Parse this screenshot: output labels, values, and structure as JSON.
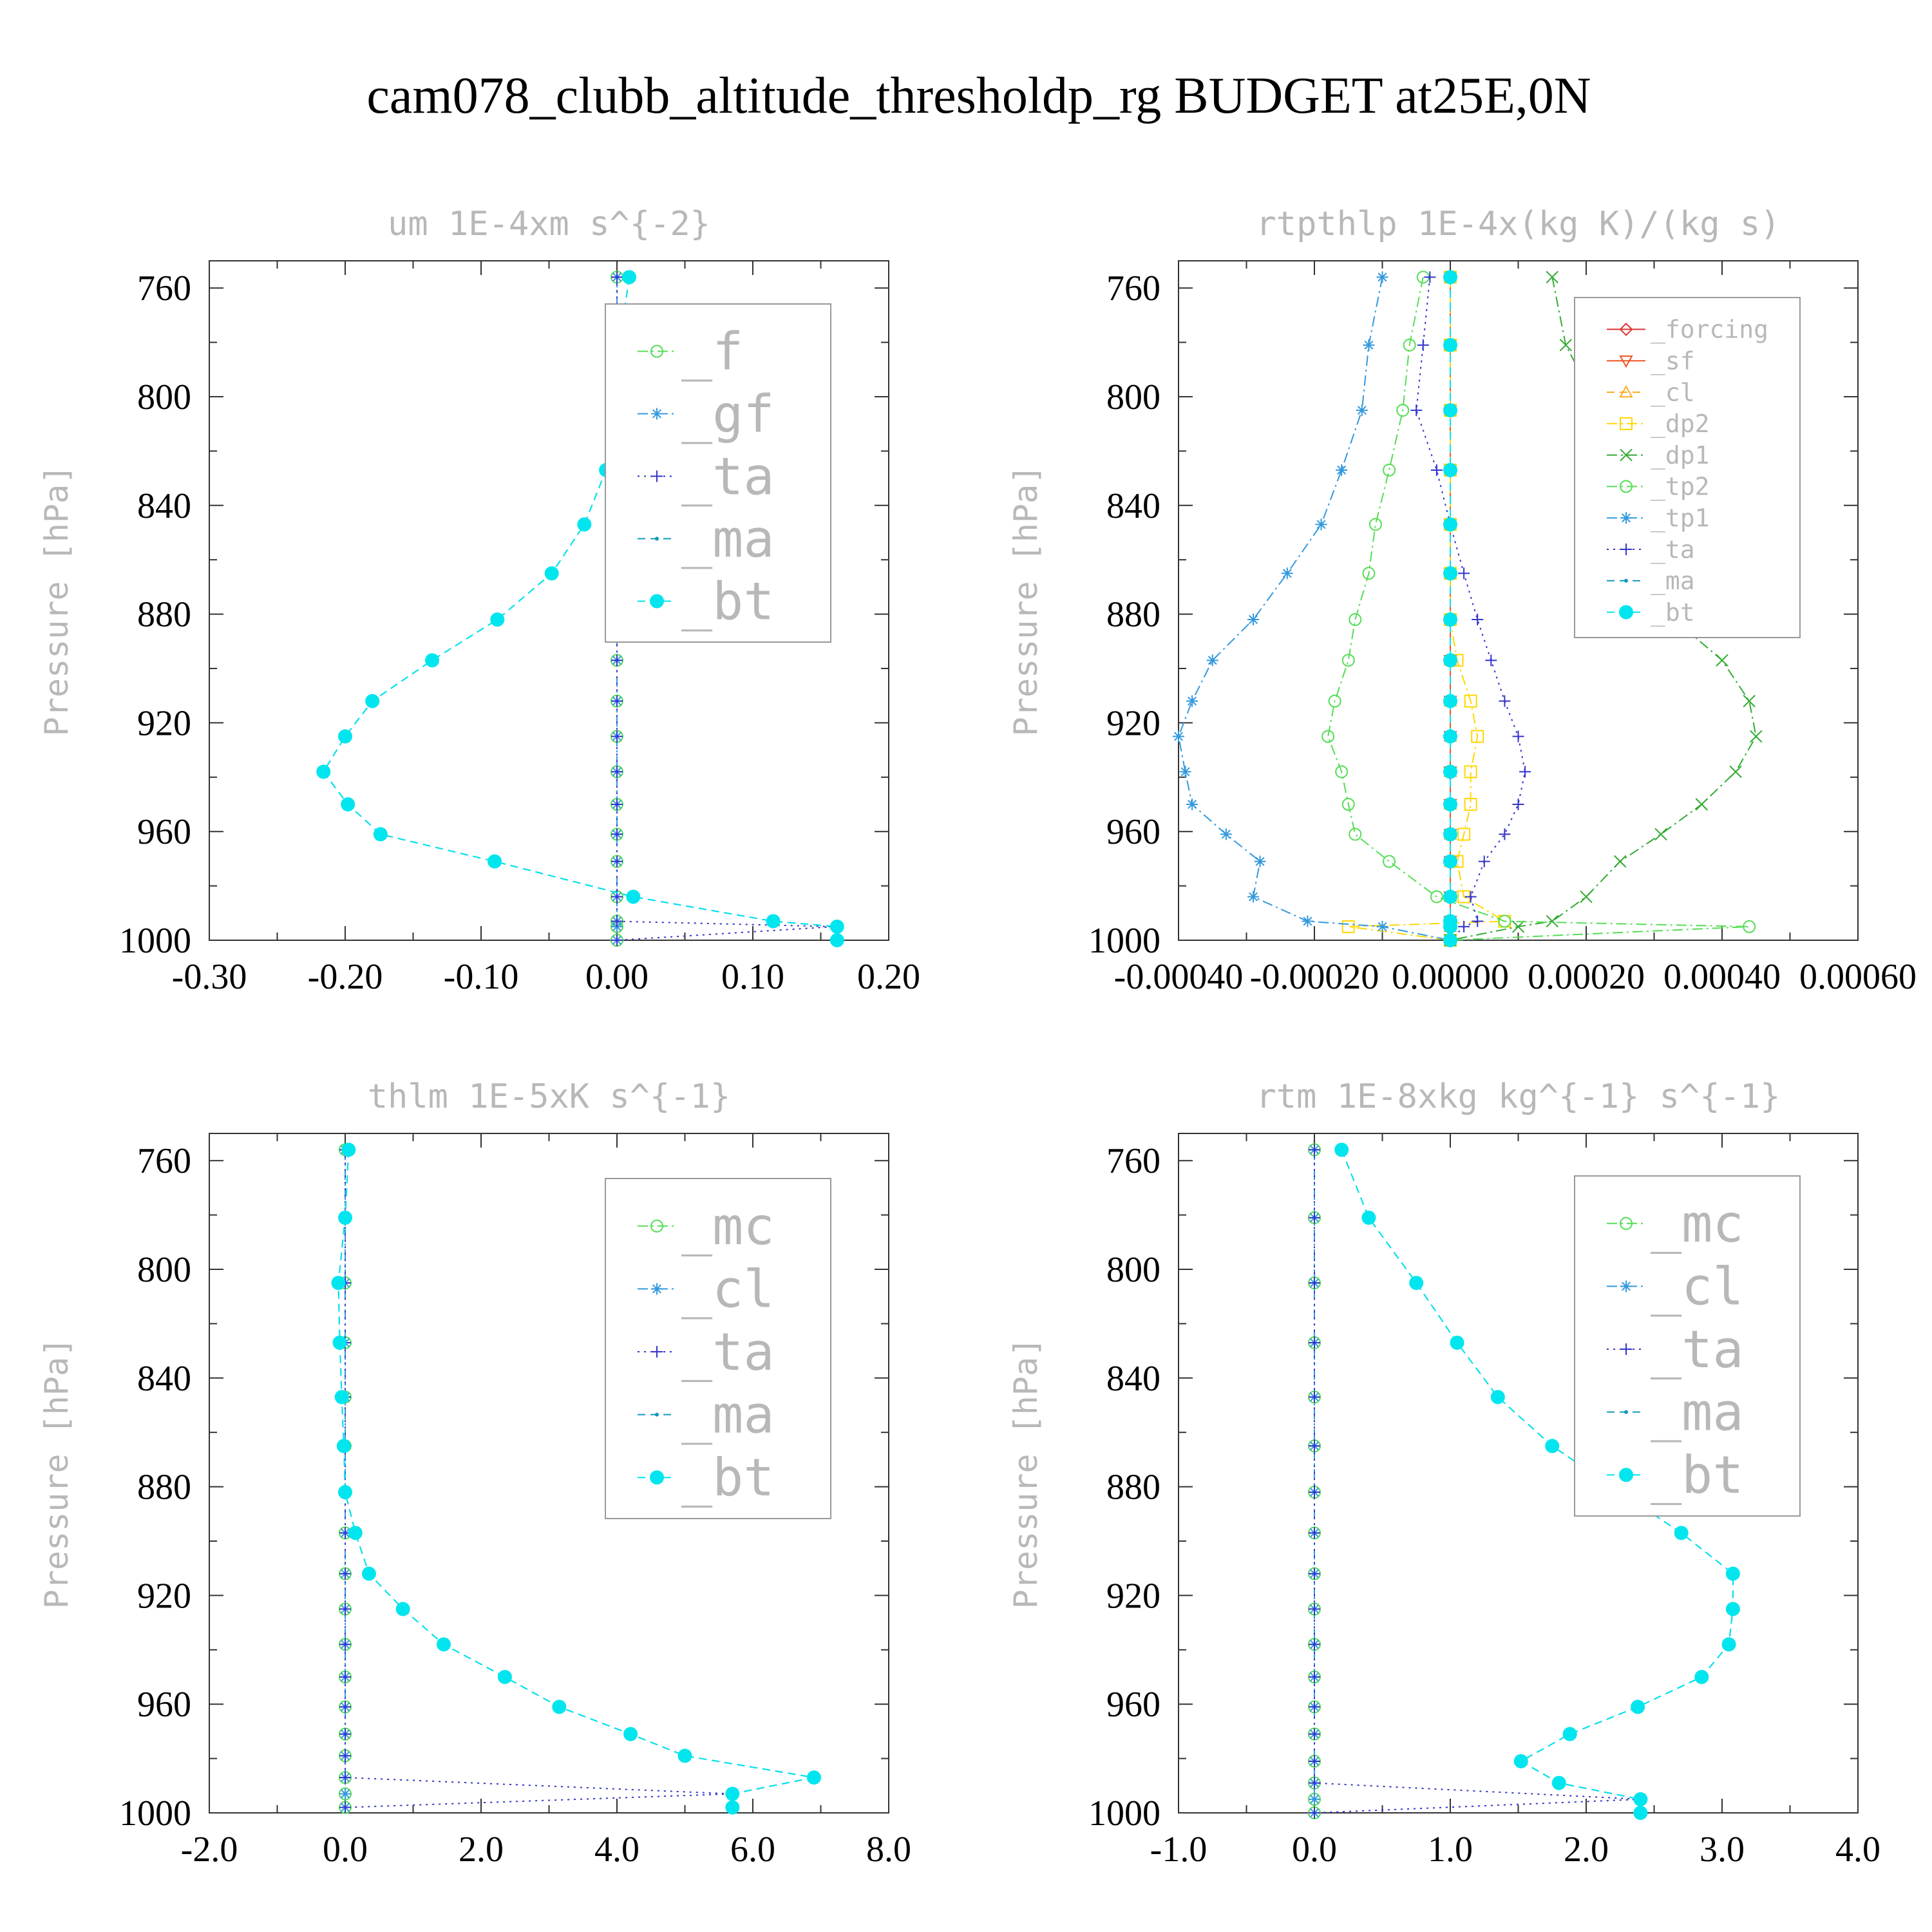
{
  "title": "cam078_clubb_altitude_thresholdp_rg  BUDGET at25E,0N",
  "colors": {
    "f": "#55dd55",
    "gf": "#3399dd",
    "ta": "#3333cc",
    "ma": "#1199bb",
    "bt": "#00e5ee",
    "forcing": "#dd3333",
    "sf": "#ee5522",
    "cl": "#ffaa22",
    "dp2": "#ffd700",
    "dp1": "#33aa33",
    "tp2": "#55dd55",
    "tp1": "#3399dd",
    "mc": "#55dd55",
    "cl2": "#3399dd"
  },
  "chart_data": [
    {
      "type": "line",
      "title": "um  1E-4xm s^{-2}",
      "ylabel": "Pressure [hPa]",
      "xlim": [
        -0.3,
        0.2
      ],
      "ylim": [
        1000,
        750
      ],
      "xticks": [
        "-0.30",
        "-0.20",
        "-0.10",
        "0.00",
        "0.10",
        "0.20"
      ],
      "yticks": [
        "760",
        "800",
        "840",
        "880",
        "920",
        "960",
        "1000"
      ],
      "legend_size": "large",
      "p": [
        756,
        781,
        805,
        827,
        847,
        865,
        882,
        897,
        912,
        925,
        938,
        950,
        961,
        971,
        984,
        993,
        995,
        1000
      ],
      "series": [
        {
          "name": "_f",
          "key": "f",
          "marker": "circle",
          "dash": "dashdot",
          "values": [
            0,
            0,
            0,
            0,
            0,
            0,
            0,
            0,
            0,
            0,
            0,
            0,
            0,
            0,
            0,
            0,
            0,
            0
          ]
        },
        {
          "name": "_gf",
          "key": "gf",
          "marker": "star",
          "dash": "dashdot",
          "values": [
            0,
            0,
            0,
            0,
            0,
            0,
            0,
            0,
            0,
            0,
            0,
            0,
            0,
            0,
            0,
            0,
            0,
            0
          ]
        },
        {
          "name": "_ta",
          "key": "ta",
          "marker": "plus",
          "dash": "dotted",
          "values": [
            0,
            0,
            0,
            0,
            0,
            0,
            0,
            0,
            0,
            0,
            0,
            0,
            0,
            0,
            0,
            0,
            0.16,
            0
          ]
        },
        {
          "name": "_ma",
          "key": "ma",
          "marker": "dot",
          "dash": "dashed",
          "values": [
            0.009,
            0.002,
            -0.001,
            -0.008,
            -0.024,
            -0.048,
            -0.088,
            -0.136,
            -0.18,
            -0.2,
            -0.216,
            -0.198,
            -0.174,
            -0.09,
            0.012,
            0.115,
            0.162,
            0.162
          ]
        },
        {
          "name": "_bt",
          "key": "bt",
          "marker": "filled",
          "dash": "dashed",
          "values": [
            0.009,
            0.002,
            -0.001,
            -0.008,
            -0.024,
            -0.048,
            -0.088,
            -0.136,
            -0.18,
            -0.2,
            -0.216,
            -0.198,
            -0.174,
            -0.09,
            0.012,
            0.115,
            0.162,
            0.162
          ]
        }
      ]
    },
    {
      "type": "line",
      "title": "rtpthlp  1E-4x(kg K)/(kg s)",
      "ylabel": "Pressure [hPa]",
      "xlim": [
        -0.0004,
        0.0006
      ],
      "ylim": [
        1000,
        750
      ],
      "xticks": [
        "-0.00040",
        "-0.00020",
        "0.00000",
        "0.00020",
        "0.00040",
        "0.00060"
      ],
      "yticks": [
        "760",
        "800",
        "840",
        "880",
        "920",
        "960",
        "1000"
      ],
      "legend_size": "small",
      "p": [
        756,
        781,
        805,
        827,
        847,
        865,
        882,
        897,
        912,
        925,
        938,
        950,
        961,
        971,
        984,
        993,
        995,
        1000
      ],
      "series": [
        {
          "name": "_forcing",
          "key": "forcing",
          "marker": "diamond",
          "dash": "solid",
          "values": [
            0,
            0,
            0,
            0,
            0,
            0,
            0,
            0,
            0,
            0,
            0,
            0,
            0,
            0,
            0,
            0,
            0,
            0
          ]
        },
        {
          "name": "_sf",
          "key": "sf",
          "marker": "tri-down",
          "dash": "solid",
          "values": [
            0,
            0,
            0,
            0,
            0,
            0,
            0,
            0,
            0,
            0,
            0,
            0,
            0,
            0,
            0,
            0,
            0,
            0
          ]
        },
        {
          "name": "_cl",
          "key": "cl",
          "marker": "tri-up",
          "dash": "dashed",
          "values": [
            0,
            0,
            0,
            0,
            0,
            0,
            0,
            0,
            0,
            0,
            0,
            0,
            0,
            0,
            0,
            0,
            0,
            0
          ]
        },
        {
          "name": "_dp2",
          "key": "dp2",
          "marker": "square",
          "dash": "dashdot",
          "values": [
            0,
            0,
            0,
            0,
            0,
            0,
            0,
            1e-05,
            3e-05,
            4e-05,
            3e-05,
            3e-05,
            2e-05,
            1e-05,
            2e-05,
            8e-05,
            -0.00015,
            0
          ]
        },
        {
          "name": "_dp1",
          "key": "dp1",
          "marker": "x",
          "dash": "dashdot",
          "values": [
            0.00015,
            0.00017,
            0.00022,
            0.00024,
            0.00027,
            0.0003,
            0.00033,
            0.0004,
            0.00044,
            0.00045,
            0.00042,
            0.00037,
            0.00031,
            0.00025,
            0.0002,
            0.00015,
            0.0001,
            0
          ]
        },
        {
          "name": "_tp2",
          "key": "tp2",
          "marker": "circle",
          "dash": "dashdot",
          "values": [
            -4e-05,
            -6e-05,
            -7e-05,
            -9e-05,
            -0.00011,
            -0.00012,
            -0.00014,
            -0.00015,
            -0.00017,
            -0.00018,
            -0.00016,
            -0.00015,
            -0.00014,
            -9e-05,
            -2e-05,
            8e-05,
            0.00044,
            0
          ]
        },
        {
          "name": "_tp1",
          "key": "tp1",
          "marker": "star",
          "dash": "dashdot",
          "values": [
            -0.0001,
            -0.00012,
            -0.00013,
            -0.00016,
            -0.00019,
            -0.00024,
            -0.00029,
            -0.00035,
            -0.00038,
            -0.0004,
            -0.00039,
            -0.00038,
            -0.00033,
            -0.00028,
            -0.00029,
            -0.00021,
            -0.0001,
            0
          ]
        },
        {
          "name": "_ta",
          "key": "ta",
          "marker": "plus",
          "dash": "dotted",
          "values": [
            -3e-05,
            -4e-05,
            -5e-05,
            -2e-05,
            0,
            2e-05,
            4e-05,
            6e-05,
            8e-05,
            0.0001,
            0.00011,
            0.0001,
            8e-05,
            5e-05,
            3e-05,
            4e-05,
            2e-05,
            0
          ]
        },
        {
          "name": "_ma",
          "key": "ma",
          "marker": "dot",
          "dash": "dashed",
          "values": [
            0,
            0,
            0,
            0,
            0,
            0,
            0,
            0,
            0,
            0,
            0,
            0,
            0,
            0,
            0,
            0,
            0,
            0
          ]
        },
        {
          "name": "_bt",
          "key": "bt",
          "marker": "filled",
          "dash": "dashed",
          "values": [
            0,
            0,
            0,
            0,
            0,
            0,
            0,
            0,
            0,
            0,
            0,
            0,
            0,
            0,
            0,
            0,
            0,
            0
          ]
        }
      ]
    },
    {
      "type": "line",
      "title": "thlm  1E-5xK s^{-1}",
      "ylabel": "Pressure [hPa]",
      "xlim": [
        -2.0,
        8.0
      ],
      "ylim": [
        1000,
        750
      ],
      "xticks": [
        "-2.0",
        "0.0",
        "2.0",
        "4.0",
        "6.0",
        "8.0"
      ],
      "yticks": [
        "760",
        "800",
        "840",
        "880",
        "920",
        "960",
        "1000"
      ],
      "legend_size": "large",
      "p": [
        756,
        781,
        805,
        827,
        847,
        865,
        882,
        897,
        912,
        925,
        938,
        950,
        961,
        971,
        979,
        987,
        993,
        998
      ],
      "series": [
        {
          "name": "_mc",
          "key": "mc",
          "marker": "circle",
          "dash": "dashdot",
          "values": [
            0,
            0,
            0,
            0,
            0,
            0,
            0,
            0,
            0,
            0,
            0,
            0,
            0,
            0,
            0,
            0,
            0,
            0
          ]
        },
        {
          "name": "_cl",
          "key": "cl2",
          "marker": "star",
          "dash": "dashdot",
          "values": [
            0,
            0,
            0,
            0,
            0,
            0,
            0,
            0,
            0,
            0,
            0,
            0,
            0,
            0,
            0,
            0,
            0,
            0
          ]
        },
        {
          "name": "_ta",
          "key": "ta",
          "marker": "plus",
          "dash": "dotted",
          "values": [
            0,
            0,
            0,
            0,
            0,
            0,
            0,
            0,
            0,
            0,
            0,
            0,
            0,
            0,
            0,
            0,
            5.7,
            0
          ]
        },
        {
          "name": "_ma",
          "key": "ma",
          "marker": "dot",
          "dash": "dashed",
          "values": [
            0.05,
            0.0,
            -0.1,
            -0.08,
            -0.05,
            -0.02,
            0.0,
            0.15,
            0.35,
            0.85,
            1.45,
            2.35,
            3.15,
            4.2,
            5.0,
            6.9,
            5.7,
            5.7
          ]
        },
        {
          "name": "_bt",
          "key": "bt",
          "marker": "filled",
          "dash": "dashed",
          "values": [
            0.05,
            0.0,
            -0.1,
            -0.08,
            -0.05,
            -0.02,
            0.0,
            0.15,
            0.35,
            0.85,
            1.45,
            2.35,
            3.15,
            4.2,
            5.0,
            6.9,
            5.7,
            5.7
          ]
        }
      ]
    },
    {
      "type": "line",
      "title": "rtm  1E-8xkg kg^{-1} s^{-1}",
      "ylabel": "Pressure [hPa]",
      "xlim": [
        -1.0,
        4.0
      ],
      "ylim": [
        1000,
        750
      ],
      "xticks": [
        "-1.0",
        "0.0",
        "1.0",
        "2.0",
        "3.0",
        "4.0"
      ],
      "yticks": [
        "760",
        "800",
        "840",
        "880",
        "920",
        "960",
        "1000"
      ],
      "legend_size": "large",
      "p": [
        756,
        781,
        805,
        827,
        847,
        865,
        882,
        897,
        912,
        925,
        938,
        950,
        961,
        971,
        981,
        989,
        995,
        1000
      ],
      "series": [
        {
          "name": "_mc",
          "key": "mc",
          "marker": "circle",
          "dash": "dashdot",
          "values": [
            0,
            0,
            0,
            0,
            0,
            0,
            0,
            0,
            0,
            0,
            0,
            0,
            0,
            0,
            0,
            0,
            0,
            0
          ]
        },
        {
          "name": "_cl",
          "key": "cl2",
          "marker": "star",
          "dash": "dashdot",
          "values": [
            0,
            0,
            0,
            0,
            0,
            0,
            0,
            0,
            0,
            0,
            0,
            0,
            0,
            0,
            0,
            0,
            0,
            0
          ]
        },
        {
          "name": "_ta",
          "key": "ta",
          "marker": "plus",
          "dash": "dotted",
          "values": [
            0,
            0,
            0,
            0,
            0,
            0,
            0,
            0,
            0,
            0,
            0,
            0,
            0,
            0,
            0,
            0,
            2.4,
            0
          ]
        },
        {
          "name": "_ma",
          "key": "ma",
          "marker": "dot",
          "dash": "dashed",
          "values": [
            0.2,
            0.4,
            0.75,
            1.05,
            1.35,
            1.75,
            2.25,
            2.7,
            3.08,
            3.08,
            3.05,
            2.85,
            2.38,
            1.88,
            1.52,
            1.8,
            2.4,
            2.4
          ]
        },
        {
          "name": "_bt",
          "key": "bt",
          "marker": "filled",
          "dash": "dashed",
          "values": [
            0.2,
            0.4,
            0.75,
            1.05,
            1.35,
            1.75,
            2.25,
            2.7,
            3.08,
            3.08,
            3.05,
            2.85,
            2.38,
            1.88,
            1.52,
            1.8,
            2.4,
            2.4
          ]
        }
      ]
    }
  ]
}
